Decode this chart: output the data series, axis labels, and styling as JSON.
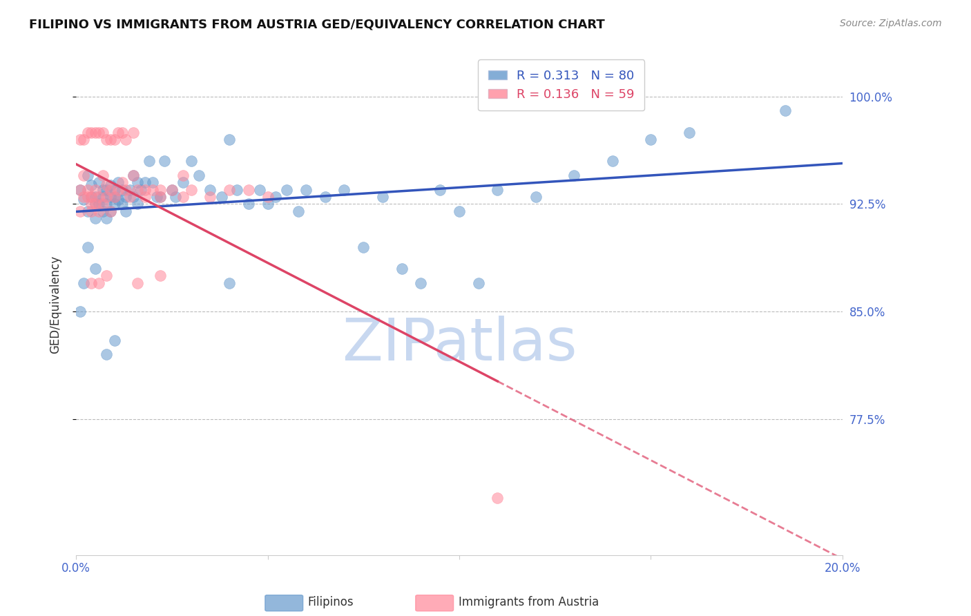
{
  "title": "FILIPINO VS IMMIGRANTS FROM AUSTRIA GED/EQUIVALENCY CORRELATION CHART",
  "source": "Source: ZipAtlas.com",
  "ylabel": "GED/Equivalency",
  "xlim": [
    0.0,
    0.2
  ],
  "ylim": [
    0.68,
    1.03
  ],
  "r_filipino": 0.313,
  "n_filipino": 80,
  "r_austria": 0.136,
  "n_austria": 59,
  "blue_color": "#6699CC",
  "pink_color": "#FF8899",
  "line_blue": "#3355BB",
  "line_pink": "#DD4466",
  "watermark": "ZIPatlas",
  "watermark_color": "#C8D8F0",
  "title_fontsize": 13,
  "axis_label_color": "#4466CC",
  "background_color": "#FFFFFF",
  "filipino_data_x": [
    0.001,
    0.002,
    0.003,
    0.003,
    0.004,
    0.004,
    0.005,
    0.005,
    0.005,
    0.006,
    0.006,
    0.007,
    0.007,
    0.007,
    0.008,
    0.008,
    0.008,
    0.009,
    0.009,
    0.009,
    0.01,
    0.01,
    0.01,
    0.011,
    0.011,
    0.012,
    0.012,
    0.013,
    0.013,
    0.014,
    0.015,
    0.015,
    0.016,
    0.016,
    0.017,
    0.018,
    0.019,
    0.02,
    0.021,
    0.022,
    0.023,
    0.025,
    0.026,
    0.028,
    0.03,
    0.032,
    0.035,
    0.038,
    0.04,
    0.042,
    0.045,
    0.048,
    0.05,
    0.052,
    0.055,
    0.058,
    0.06,
    0.065,
    0.07,
    0.075,
    0.08,
    0.085,
    0.09,
    0.095,
    0.1,
    0.105,
    0.11,
    0.12,
    0.13,
    0.14,
    0.15,
    0.16,
    0.001,
    0.002,
    0.003,
    0.005,
    0.008,
    0.01,
    0.185,
    0.04
  ],
  "filipino_data_y": [
    0.935,
    0.928,
    0.945,
    0.92,
    0.938,
    0.93,
    0.925,
    0.915,
    0.93,
    0.94,
    0.925,
    0.935,
    0.92,
    0.93,
    0.935,
    0.925,
    0.915,
    0.93,
    0.92,
    0.938,
    0.935,
    0.925,
    0.93,
    0.94,
    0.928,
    0.935,
    0.925,
    0.93,
    0.92,
    0.935,
    0.945,
    0.93,
    0.94,
    0.925,
    0.935,
    0.94,
    0.955,
    0.94,
    0.93,
    0.93,
    0.955,
    0.935,
    0.93,
    0.94,
    0.955,
    0.945,
    0.935,
    0.93,
    0.87,
    0.935,
    0.925,
    0.935,
    0.925,
    0.93,
    0.935,
    0.92,
    0.935,
    0.93,
    0.935,
    0.895,
    0.93,
    0.88,
    0.87,
    0.935,
    0.92,
    0.87,
    0.935,
    0.93,
    0.945,
    0.955,
    0.97,
    0.975,
    0.85,
    0.87,
    0.895,
    0.88,
    0.82,
    0.83,
    0.99,
    0.97
  ],
  "austria_data_x": [
    0.001,
    0.001,
    0.002,
    0.002,
    0.003,
    0.003,
    0.004,
    0.004,
    0.004,
    0.005,
    0.005,
    0.006,
    0.006,
    0.007,
    0.007,
    0.008,
    0.008,
    0.009,
    0.009,
    0.01,
    0.011,
    0.012,
    0.013,
    0.014,
    0.015,
    0.016,
    0.018,
    0.02,
    0.022,
    0.025,
    0.028,
    0.03,
    0.035,
    0.04,
    0.045,
    0.05,
    0.001,
    0.002,
    0.003,
    0.004,
    0.005,
    0.006,
    0.007,
    0.008,
    0.009,
    0.01,
    0.011,
    0.012,
    0.013,
    0.015,
    0.018,
    0.022,
    0.028,
    0.004,
    0.006,
    0.008,
    0.016,
    0.022,
    0.11
  ],
  "austria_data_y": [
    0.935,
    0.92,
    0.945,
    0.93,
    0.93,
    0.935,
    0.92,
    0.93,
    0.925,
    0.935,
    0.925,
    0.93,
    0.92,
    0.945,
    0.925,
    0.93,
    0.938,
    0.935,
    0.92,
    0.93,
    0.935,
    0.94,
    0.935,
    0.93,
    0.945,
    0.935,
    0.935,
    0.935,
    0.93,
    0.935,
    0.945,
    0.935,
    0.93,
    0.935,
    0.935,
    0.93,
    0.97,
    0.97,
    0.975,
    0.975,
    0.975,
    0.975,
    0.975,
    0.97,
    0.97,
    0.97,
    0.975,
    0.975,
    0.97,
    0.975,
    0.93,
    0.935,
    0.93,
    0.87,
    0.87,
    0.875,
    0.87,
    0.875,
    0.72
  ],
  "ytick_vals": [
    0.775,
    0.85,
    0.925,
    1.0
  ],
  "ytick_labels": [
    "77.5%",
    "85.0%",
    "92.5%",
    "100.0%"
  ],
  "xtick_vals": [
    0.0,
    0.05,
    0.1,
    0.15,
    0.2
  ],
  "xtick_labels": [
    "0.0%",
    "",
    "",
    "",
    "20.0%"
  ]
}
